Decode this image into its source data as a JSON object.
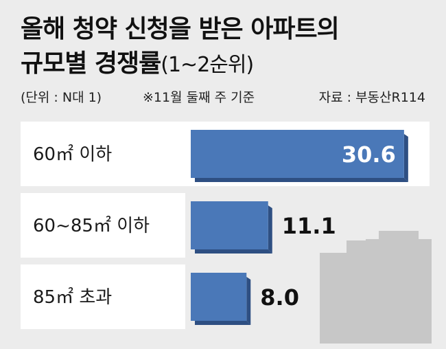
{
  "title": {
    "line1": "올해 청약 신청을 받은 아파트의",
    "line2": "규모별 경쟁률",
    "suffix": "(1~2순위)"
  },
  "meta": {
    "unit": "(단위 : N대 1)",
    "basis": "※11월 둘째 주 기준",
    "source": "자료 : 부동산R114"
  },
  "colors": {
    "background": "#ececec",
    "row_background": "#ffffff",
    "bar_fill": "#4a78b8",
    "bar_shadow": "#2e4f82",
    "buildings": "#c7c7c7"
  },
  "chart_data": {
    "type": "bar",
    "orientation": "horizontal",
    "categories": [
      "60㎡ 이하",
      "60~85㎡ 이하",
      "85㎡ 초과"
    ],
    "values": [
      30.6,
      11.1,
      8.0
    ],
    "value_labels": [
      "30.6",
      "11.1",
      "8.0"
    ],
    "title": "올해 청약 신청을 받은 아파트의 규모별 경쟁률(1~2순위)",
    "xlim": [
      0,
      31.5
    ],
    "grid": false,
    "legend": "none"
  }
}
